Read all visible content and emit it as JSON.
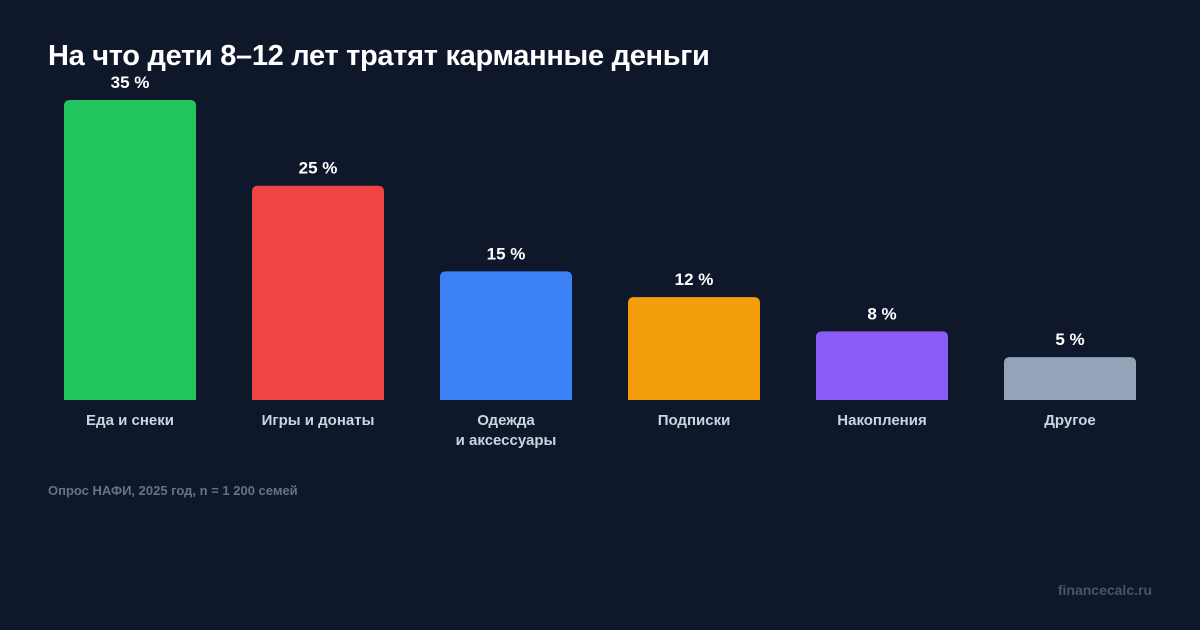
{
  "chart_data": {
    "type": "bar",
    "title": "На что дети 8–12 лет тратят карманные деньги",
    "categories": [
      "Еда и снеки",
      "Игры и донаты",
      "Одежда\nи аксессуары",
      "Подписки",
      "Накопления",
      "Другое"
    ],
    "values": [
      35,
      25,
      15,
      12,
      8,
      5
    ],
    "data_labels": [
      "35 %",
      "25 %",
      "15 %",
      "12 %",
      "8 %",
      "5 %"
    ],
    "colors": [
      "#22c55e",
      "#ef4444",
      "#3b82f6",
      "#f59e0b",
      "#8b5cf6",
      "#94a3b8"
    ],
    "unit": "%",
    "ylim": [
      0,
      35
    ],
    "grid": false,
    "axes_visible": false,
    "legend": "none"
  },
  "footer": {
    "source": "Опрос НАФИ, 2025 год, n = 1 200 семей",
    "brand": "financecalc.ru"
  },
  "background": "#0f172a"
}
